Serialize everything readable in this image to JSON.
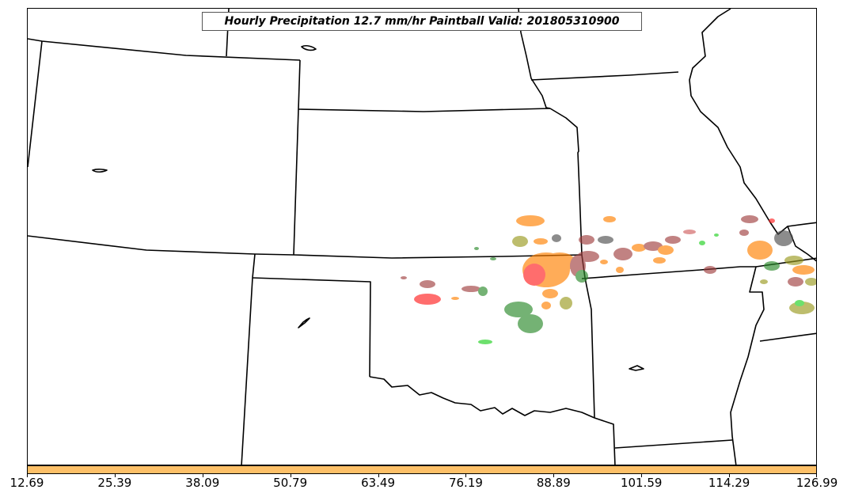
{
  "title": "Hourly Precipitation 12.7 mm/hr Paintball Valid: 201805310900",
  "colorbar": {
    "color": "#fdc068",
    "ticks": [
      "12.69",
      "25.39",
      "38.09",
      "50.79",
      "63.49",
      "76.19",
      "88.89",
      "101.59",
      "114.29",
      "126.99"
    ]
  },
  "colors": {
    "border": "#000000",
    "paintball_members": [
      "#ff2020",
      "#ff8000",
      "#a04040",
      "#2a8a2a",
      "#9a9a20",
      "#505050",
      "#20d020",
      "#d06060"
    ]
  }
}
